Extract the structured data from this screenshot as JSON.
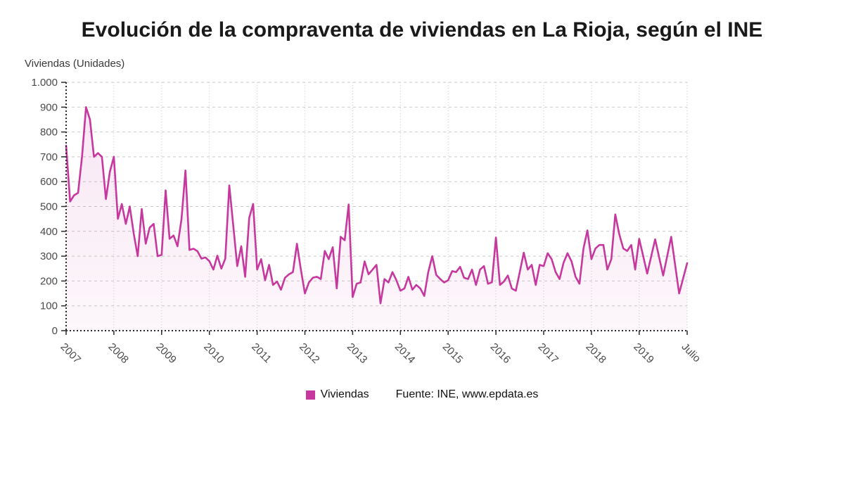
{
  "header": {
    "title": "Evolución de la compraventa de viviendas en La Rioja, según el INE"
  },
  "y_axis_title": "Viviendas (Unidades)",
  "legend": {
    "series_label": "Viviendas",
    "source_label": "Fuente: INE, www.epdata.es"
  },
  "colors": {
    "line": "#c6389e",
    "area_top": "rgba(198,56,158,0.12)",
    "area_bottom": "rgba(198,56,158,0.04)",
    "grid": "#c9c9c9",
    "axis": "#2b2b2b",
    "tick_text": "#4a4a4a",
    "title_text": "#1a1a1a"
  },
  "chart_data": {
    "type": "line",
    "title": "Evolución de la compraventa de viviendas en La Rioja, según el INE",
    "ylabel": "Viviendas (Unidades)",
    "xlabel": "",
    "ylim": [
      0,
      1000
    ],
    "grid": true,
    "legend_position": "bottom",
    "frequency": "monthly",
    "x_start": "2007-01",
    "x_end": "2019-07",
    "x_tick_labels": [
      "2007",
      "2008",
      "2009",
      "2010",
      "2011",
      "2012",
      "2013",
      "2014",
      "2015",
      "2016",
      "2017",
      "2018",
      "2019",
      "Julio"
    ],
    "x_tick_indices": [
      0,
      12,
      24,
      36,
      48,
      60,
      72,
      84,
      96,
      108,
      120,
      132,
      144,
      150
    ],
    "y_tick_values": [
      0,
      100,
      200,
      300,
      400,
      500,
      600,
      700,
      800,
      900,
      1000
    ],
    "y_tick_labels": [
      "0",
      "100",
      "200",
      "300",
      "400",
      "500",
      "600",
      "700",
      "800",
      "900",
      "1.000"
    ],
    "series_name": "Viviendas",
    "values_by_year": {
      "2007": [
        745,
        520,
        545,
        555,
        700,
        900,
        850,
        700,
        715,
        700,
        530,
        640
      ],
      "2008": [
        700,
        450,
        510,
        430,
        500,
        390,
        300,
        490,
        350,
        415,
        430,
        300
      ],
      "2009": [
        305,
        565,
        370,
        383,
        340,
        450,
        645,
        325,
        330,
        320,
        290,
        295
      ],
      "2010": [
        280,
        246,
        302,
        250,
        290,
        585,
        425,
        260,
        340,
        217,
        454,
        510
      ],
      "2011": [
        246,
        288,
        203,
        265,
        184,
        198,
        165,
        213,
        227,
        236,
        350,
        246
      ],
      "2012": [
        150,
        194,
        213,
        217,
        208,
        321,
        288,
        336,
        170,
        378,
        364,
        508
      ],
      "2013": [
        135,
        189,
        194,
        279,
        227,
        246,
        265,
        110,
        208,
        194,
        236,
        203
      ],
      "2014": [
        161,
        170,
        217,
        165,
        184,
        170,
        140,
        236,
        300,
        225,
        208,
        194
      ],
      "2015": [
        203,
        240,
        236,
        257,
        213,
        208,
        246,
        184,
        246,
        260,
        189,
        195
      ],
      "2016": [
        375,
        184,
        198,
        222,
        170,
        161,
        236,
        314,
        246,
        265,
        184,
        265
      ],
      "2017": [
        260,
        312,
        288,
        236,
        208,
        274,
        312,
        279,
        217,
        189,
        331,
        404
      ],
      "2018": [
        288,
        331,
        345,
        345,
        246,
        288,
        468,
        388,
        331,
        321,
        345,
        246
      ],
      "2019": [
        370,
        230,
        368,
        222,
        378,
        150,
        272
      ]
    }
  }
}
